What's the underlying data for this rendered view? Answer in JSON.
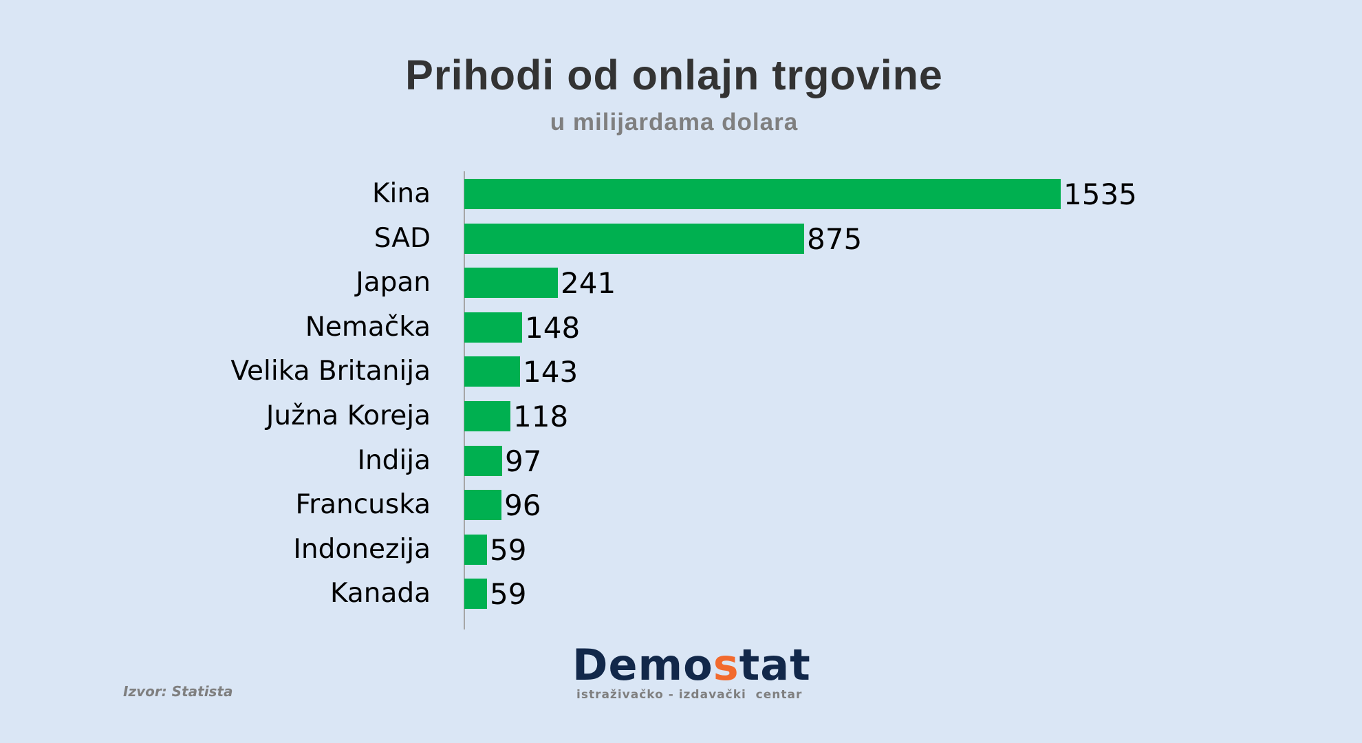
{
  "header": {
    "title": "Prihodi od onlajn trgovine",
    "subtitle": "u milijardama dolara"
  },
  "colors": {
    "background": "#dae6f5",
    "bar": "#00b050",
    "title": "#333333",
    "subtitle": "#7f7f7f",
    "logo_main": "#12284a",
    "logo_accent": "#f26a2e"
  },
  "footer": {
    "source": "Izvor: Statista",
    "logo_part1": "Demo",
    "logo_accent": "s",
    "logo_part2": "tat",
    "logo_tagline": "istraživačko - izdavački  centar"
  },
  "chart_data": {
    "type": "bar",
    "orientation": "horizontal",
    "title": "Prihodi od onlajn trgovine",
    "subtitle": "u milijardama dolara",
    "xlabel": "",
    "ylabel": "",
    "categories": [
      "Kina",
      "SAD",
      "Japan",
      "Nemačka",
      "Velika Britanija",
      "Južna Koreja",
      "Indija",
      "Francuska",
      "Indonezija",
      "Kanada"
    ],
    "values": [
      1535,
      875,
      241,
      148,
      143,
      118,
      97,
      96,
      59,
      59
    ],
    "data_labels": true,
    "grid": false,
    "legend": "none",
    "xlim": [
      0,
      1535
    ],
    "source": "Izvor: Statista"
  }
}
